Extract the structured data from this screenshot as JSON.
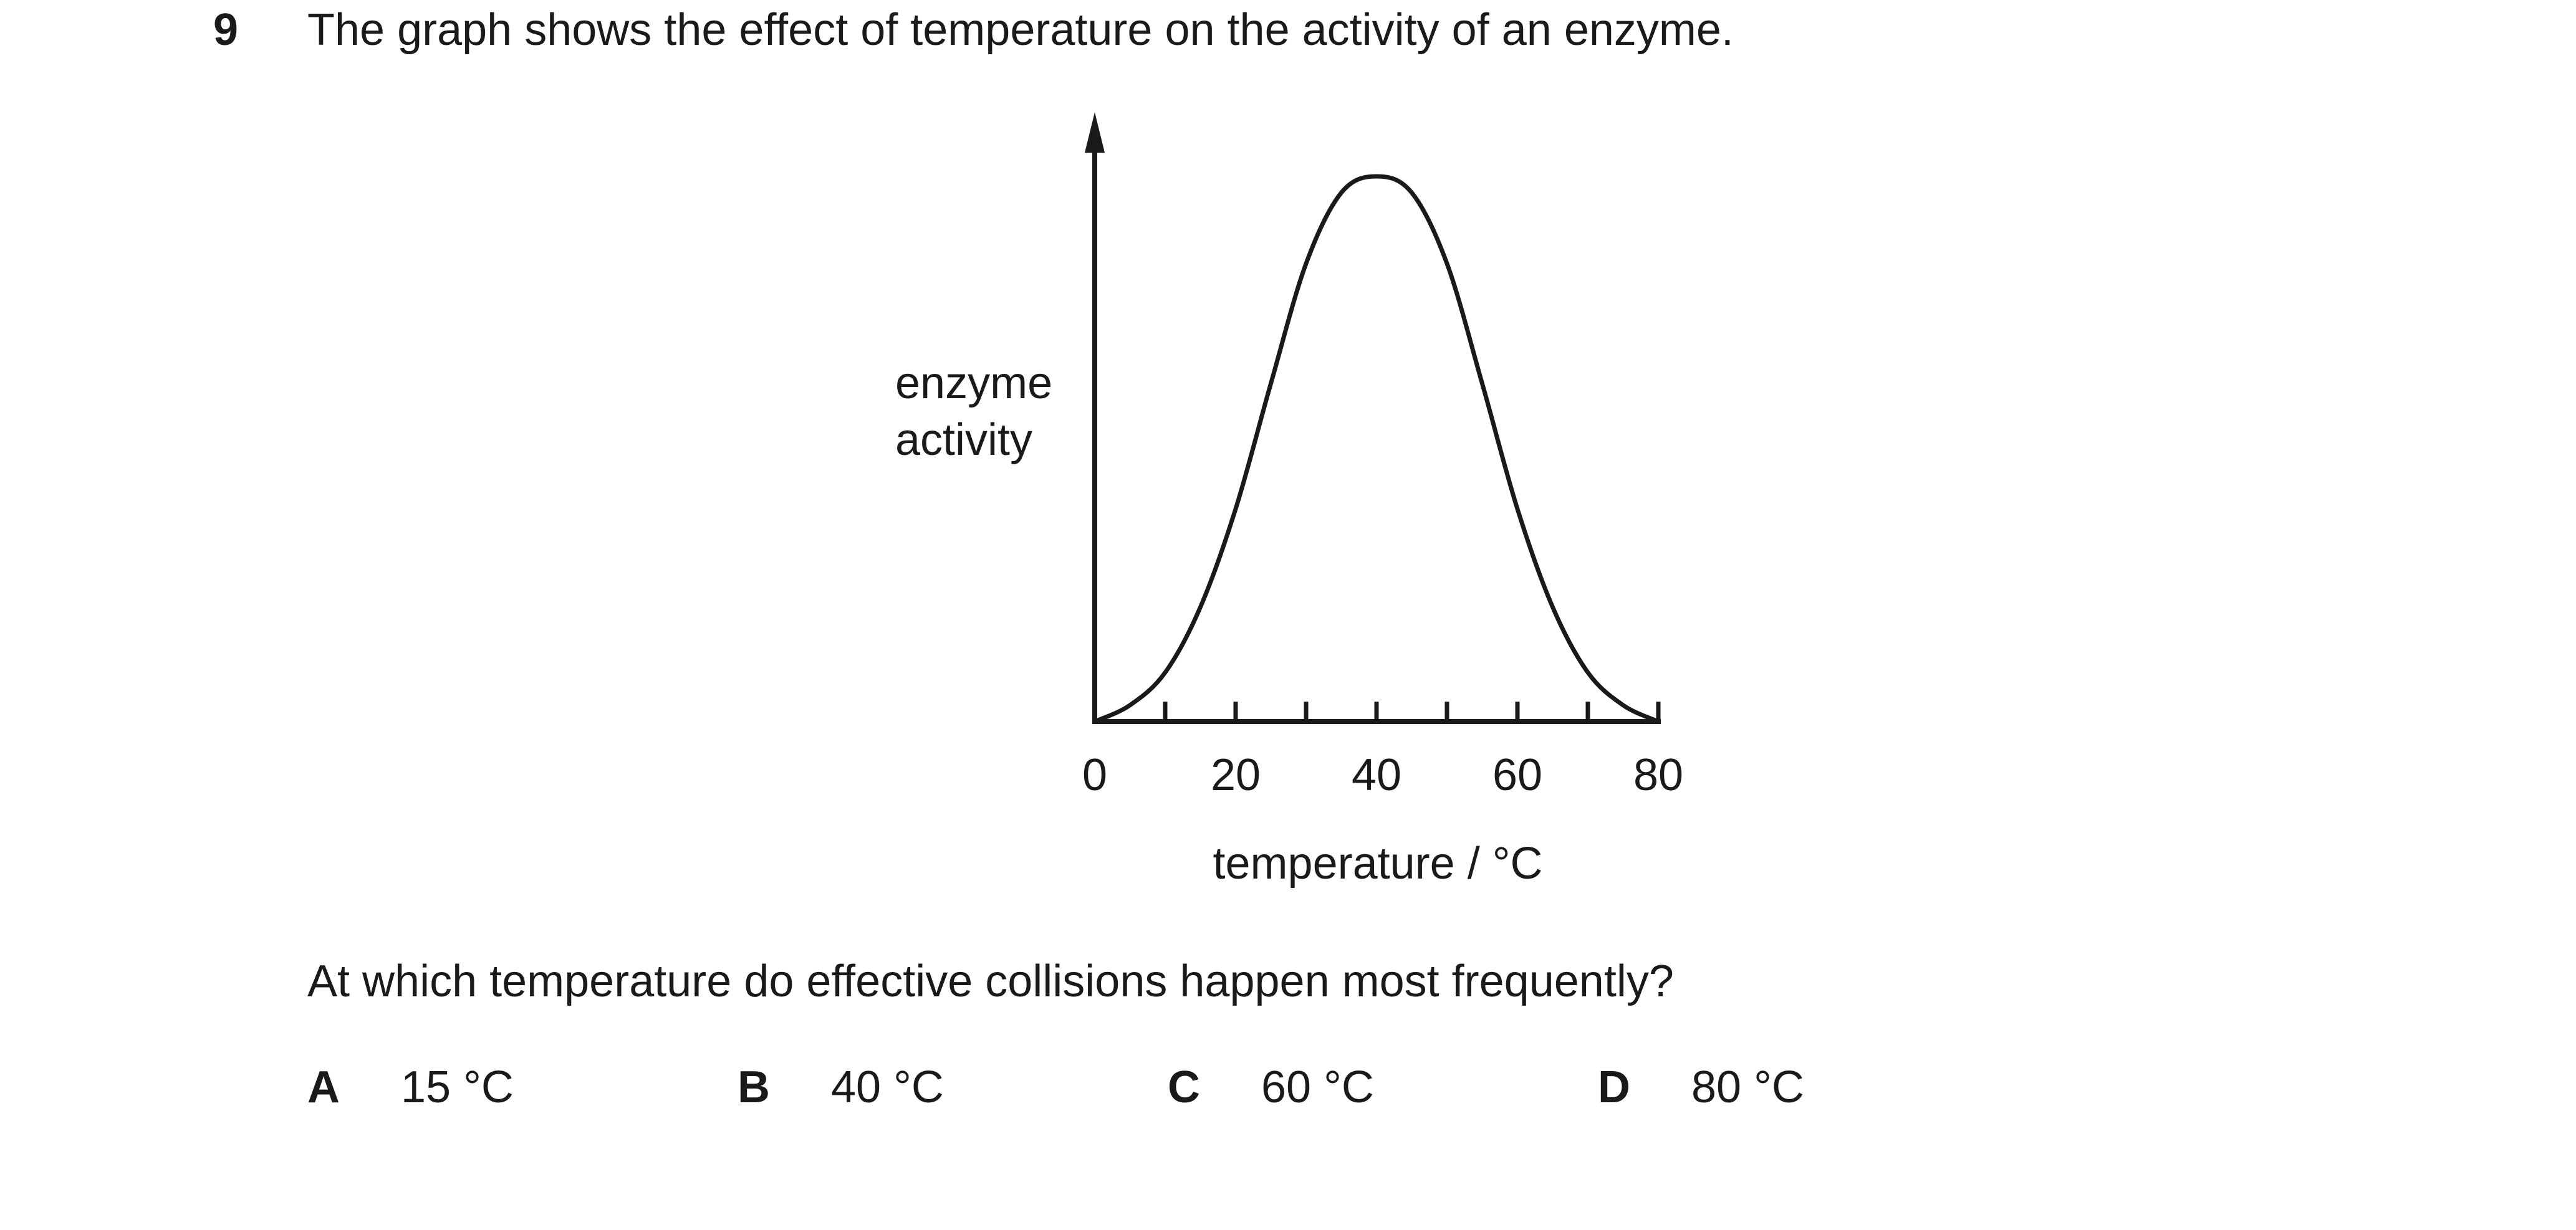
{
  "question": {
    "number": "9",
    "stem": "The graph shows the effect of temperature on the activity of an enzyme.",
    "prompt": "At which temperature do effective collisions happen most frequently?",
    "options": [
      {
        "letter": "A",
        "value": "15 °C"
      },
      {
        "letter": "B",
        "value": "40 °C"
      },
      {
        "letter": "C",
        "value": "60 °C"
      },
      {
        "letter": "D",
        "value": "80 °C"
      }
    ]
  },
  "chart_data": {
    "type": "line",
    "xlabel": "temperature / °C",
    "ylabel_lines": [
      "enzyme",
      "activity"
    ],
    "xlim": [
      0,
      80
    ],
    "x_ticks_labeled": [
      "0",
      "20",
      "40",
      "60",
      "80"
    ],
    "x_tick_step": 10,
    "y_ticks": [],
    "grid": false,
    "series": [
      {
        "x": [
          0,
          5,
          10,
          15,
          20,
          25,
          30,
          35,
          40,
          45,
          50,
          55,
          60,
          65,
          70,
          75,
          80
        ],
        "y": [
          0,
          3,
          9,
          21,
          39,
          62,
          84,
          97,
          100,
          97,
          84,
          62,
          39,
          21,
          9,
          3,
          0
        ]
      }
    ]
  }
}
